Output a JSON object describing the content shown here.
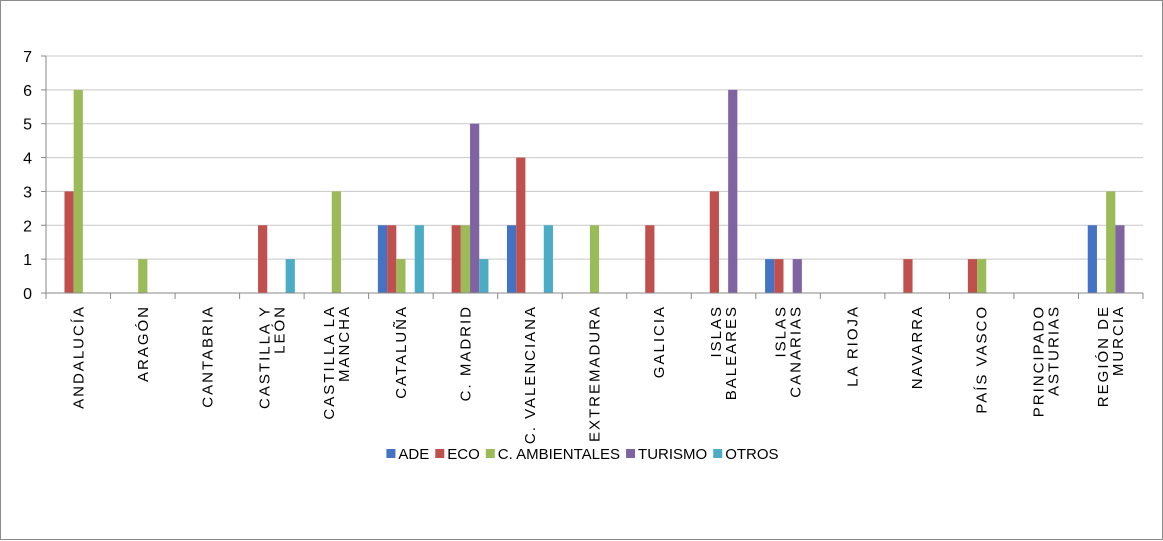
{
  "chart_data": {
    "type": "bar",
    "categories": [
      [
        "ANDALUCÍA"
      ],
      [
        "ARAGÓN"
      ],
      [
        "CANTABRIA"
      ],
      [
        "CASTILLA Y",
        "LEÓN"
      ],
      [
        "CASTILLA LA",
        "MANCHA"
      ],
      [
        "CATALUÑA"
      ],
      [
        "C. MADRID"
      ],
      [
        "C. VALENCIANA"
      ],
      [
        "EXTREMADURA"
      ],
      [
        "GALICIA"
      ],
      [
        "ISLAS",
        "BALEARES"
      ],
      [
        "ISLAS",
        "CANARIAS"
      ],
      [
        "LA RIOJA"
      ],
      [
        "NAVARRA"
      ],
      [
        "PAÍS VASCO"
      ],
      [
        "PRINCIPADO",
        "ASTURIAS"
      ],
      [
        "REGIÓN DE",
        "MURCIA"
      ]
    ],
    "series": [
      {
        "name": "ADE",
        "color": "#4472C4",
        "values": [
          0,
          0,
          0,
          0,
          0,
          2,
          0,
          2,
          0,
          0,
          0,
          1,
          0,
          0,
          0,
          0,
          2
        ]
      },
      {
        "name": "ECO",
        "color": "#C0504D",
        "values": [
          3,
          0,
          0,
          2,
          0,
          2,
          2,
          4,
          0,
          2,
          3,
          1,
          0,
          1,
          1,
          0,
          0
        ]
      },
      {
        "name": "C. AMBIENTALES",
        "color": "#9BBB59",
        "values": [
          6,
          1,
          0,
          0,
          3,
          1,
          2,
          0,
          2,
          0,
          0,
          0,
          0,
          0,
          1,
          0,
          3
        ]
      },
      {
        "name": "TURISMO",
        "color": "#8064A2",
        "values": [
          0,
          0,
          0,
          0,
          0,
          0,
          5,
          0,
          0,
          0,
          6,
          1,
          0,
          0,
          0,
          0,
          2
        ]
      },
      {
        "name": "OTROS",
        "color": "#4BACC6",
        "values": [
          0,
          0,
          0,
          1,
          0,
          2,
          1,
          2,
          0,
          0,
          0,
          0,
          0,
          0,
          0,
          0,
          0
        ]
      }
    ],
    "yticks": [
      0,
      1,
      2,
      3,
      4,
      5,
      6,
      7
    ],
    "ylim": [
      0,
      7
    ],
    "grid": true,
    "legend_position": "bottom"
  }
}
